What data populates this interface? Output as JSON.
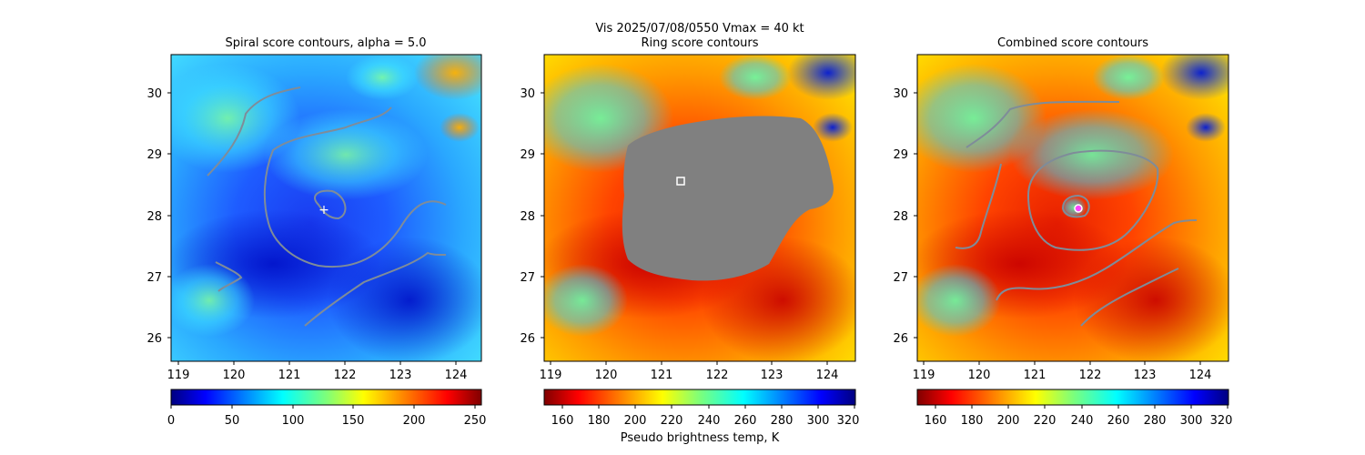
{
  "suptitle": "Vis  2025/07/08/0550    Vmax = 40 kt",
  "colorbar_label": "Pseudo brightness temp, K",
  "colors": {
    "contour": "#7f8c99",
    "ring_mask": "#808080",
    "marker": "#ffffff"
  },
  "chart_data": [
    {
      "type": "heatmap",
      "title": "Spiral score contours, alpha =  5.0",
      "xticks": [
        "119",
        "120",
        "121",
        "122",
        "123",
        "124"
      ],
      "yticks": [
        "26",
        "27",
        "28",
        "29",
        "30"
      ],
      "xlim": [
        118.9,
        124.5
      ],
      "ylim": [
        25.6,
        30.6
      ],
      "colorbar": {
        "cmap": "jet",
        "range": [
          0,
          255
        ],
        "ticks": [
          "0",
          "50",
          "100",
          "150",
          "200",
          "250"
        ]
      },
      "center_marker": {
        "lon": 121.7,
        "lat": 28.1,
        "symbol": "+"
      }
    },
    {
      "type": "heatmap",
      "title": "Ring score contours",
      "xticks": [
        "119",
        "120",
        "121",
        "122",
        "123",
        "124"
      ],
      "yticks": [
        "26",
        "27",
        "28",
        "29",
        "30"
      ],
      "xlim": [
        118.9,
        124.5
      ],
      "ylim": [
        25.6,
        30.6
      ],
      "colorbar": {
        "cmap": "jet_r",
        "range": [
          150,
          320
        ],
        "ticks": [
          "160",
          "180",
          "200",
          "220",
          "240",
          "260",
          "280",
          "300",
          "320"
        ]
      },
      "center_marker": {
        "lon": 121.3,
        "lat": 28.55,
        "symbol": "square"
      }
    },
    {
      "type": "heatmap",
      "title": "Combined score contours",
      "xticks": [
        "119",
        "120",
        "121",
        "122",
        "123",
        "124"
      ],
      "yticks": [
        "26",
        "27",
        "28",
        "29",
        "30"
      ],
      "xlim": [
        118.9,
        124.5
      ],
      "ylim": [
        25.6,
        30.6
      ],
      "colorbar": {
        "cmap": "jet_r",
        "range": [
          150,
          320
        ],
        "ticks": [
          "160",
          "180",
          "200",
          "220",
          "240",
          "260",
          "280",
          "300",
          "320"
        ]
      },
      "center_marker": {
        "lon": 121.8,
        "lat": 28.12,
        "symbol": "circle"
      }
    }
  ]
}
